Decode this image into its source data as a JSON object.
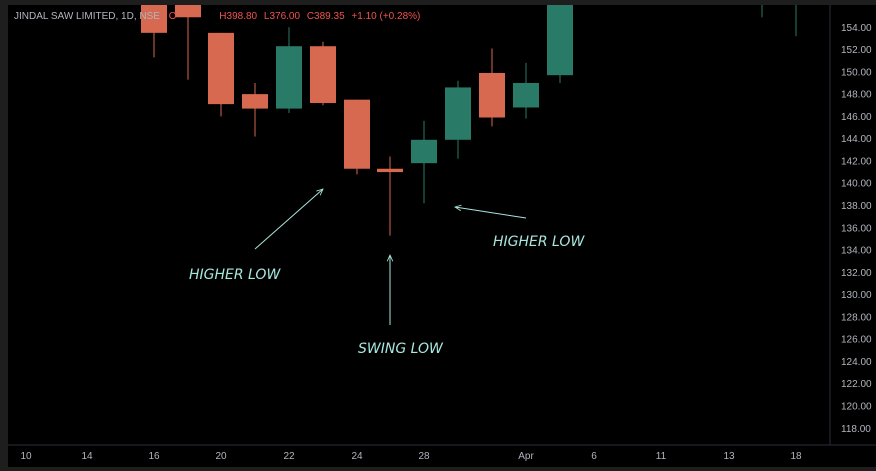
{
  "legend": {
    "symbol": "JINDAL SAW LIMITED, 1D, NSE",
    "ohlc": "O",
    "high": "H398.80",
    "low": "L376.00",
    "close": "C389.35",
    "change": "+1.10 (+0.28%)",
    "text_color": "#ef5350",
    "symbol_color": "#b2b5be"
  },
  "colors": {
    "background": "#000000",
    "frame": "#1e1e1e",
    "axis_text": "#b2b5be",
    "up": "#2a7a68",
    "down": "#d6694f",
    "annotation": "#a8e6de"
  },
  "annotations": [
    {
      "label": "HIGHER LOW",
      "points_to": "2024-03-25"
    },
    {
      "label": "SWING LOW",
      "points_to": "2024-03-26"
    },
    {
      "label": "HIGHER LOW",
      "points_to": "2024-03-28"
    }
  ],
  "chart_data": {
    "type": "candlestick",
    "title": "JINDAL SAW LIMITED, 1D, NSE",
    "xlabel": "",
    "ylabel": "",
    "ylim": [
      116.5,
      156.0
    ],
    "y_ticks": [
      118,
      120,
      122,
      124,
      126,
      128,
      130,
      132,
      134,
      136,
      138,
      140,
      142,
      144,
      146,
      148,
      150,
      152,
      154
    ],
    "x_ticks": [
      "10",
      "14",
      "16",
      "20",
      "22",
      "24",
      "28",
      "Apr",
      "6",
      "11",
      "13",
      "18"
    ],
    "grid": false,
    "candles": [
      {
        "date": "2024-03-15",
        "open": 157.5,
        "high": 159.0,
        "low": 151.3,
        "close": 153.5
      },
      {
        "date": "2024-03-18",
        "open": 157.5,
        "high": 159.0,
        "low": 149.3,
        "close": 154.9
      },
      {
        "date": "2024-03-19",
        "open": 153.5,
        "high": 153.5,
        "low": 146.0,
        "close": 147.1
      },
      {
        "date": "2024-03-20",
        "open": 148.0,
        "high": 149.0,
        "low": 144.2,
        "close": 146.7
      },
      {
        "date": "2024-03-21",
        "open": 146.7,
        "high": 154.0,
        "low": 146.3,
        "close": 152.3
      },
      {
        "date": "2024-03-22",
        "open": 152.3,
        "high": 152.7,
        "low": 147.0,
        "close": 147.2
      },
      {
        "date": "2024-03-25",
        "open": 147.5,
        "high": 147.5,
        "low": 140.8,
        "close": 141.3
      },
      {
        "date": "2024-03-26",
        "open": 141.3,
        "high": 142.4,
        "low": 135.3,
        "close": 141.0
      },
      {
        "date": "2024-03-27",
        "open": 141.8,
        "high": 145.6,
        "low": 138.2,
        "close": 143.9
      },
      {
        "date": "2024-03-28",
        "open": 143.9,
        "high": 149.2,
        "low": 142.2,
        "close": 148.6
      },
      {
        "date": "2024-03-29",
        "open": 149.9,
        "high": 152.1,
        "low": 145.1,
        "close": 145.9
      },
      {
        "date": "2024-04-01",
        "open": 146.8,
        "high": 150.8,
        "low": 145.8,
        "close": 149.0
      },
      {
        "date": "2024-04-02",
        "open": 149.7,
        "high": 158.0,
        "low": 149.0,
        "close": 157.0
      },
      {
        "date": "2024-04-16",
        "open": 157.0,
        "high": 157.0,
        "low": 154.9,
        "close": 157.0
      },
      {
        "date": "2024-04-17",
        "open": 157.0,
        "high": 157.0,
        "low": 153.2,
        "close": 157.0
      }
    ]
  }
}
